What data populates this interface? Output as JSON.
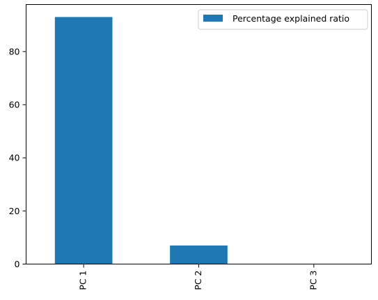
{
  "chart_data": {
    "type": "bar",
    "categories": [
      "PC 1",
      "PC 2",
      "PC 3"
    ],
    "series": [
      {
        "name": "Percentage explained ratio",
        "values": [
          93.0,
          7.0,
          0.1
        ]
      }
    ],
    "ylim": [
      0,
      97.7
    ],
    "yticks": [
      0,
      20,
      40,
      60,
      80
    ],
    "xlabel": "",
    "ylabel": "",
    "title": "",
    "grid": false,
    "legend_position": "top-right",
    "colors": {
      "bar": "#1f77b4",
      "axis": "#000000"
    }
  }
}
